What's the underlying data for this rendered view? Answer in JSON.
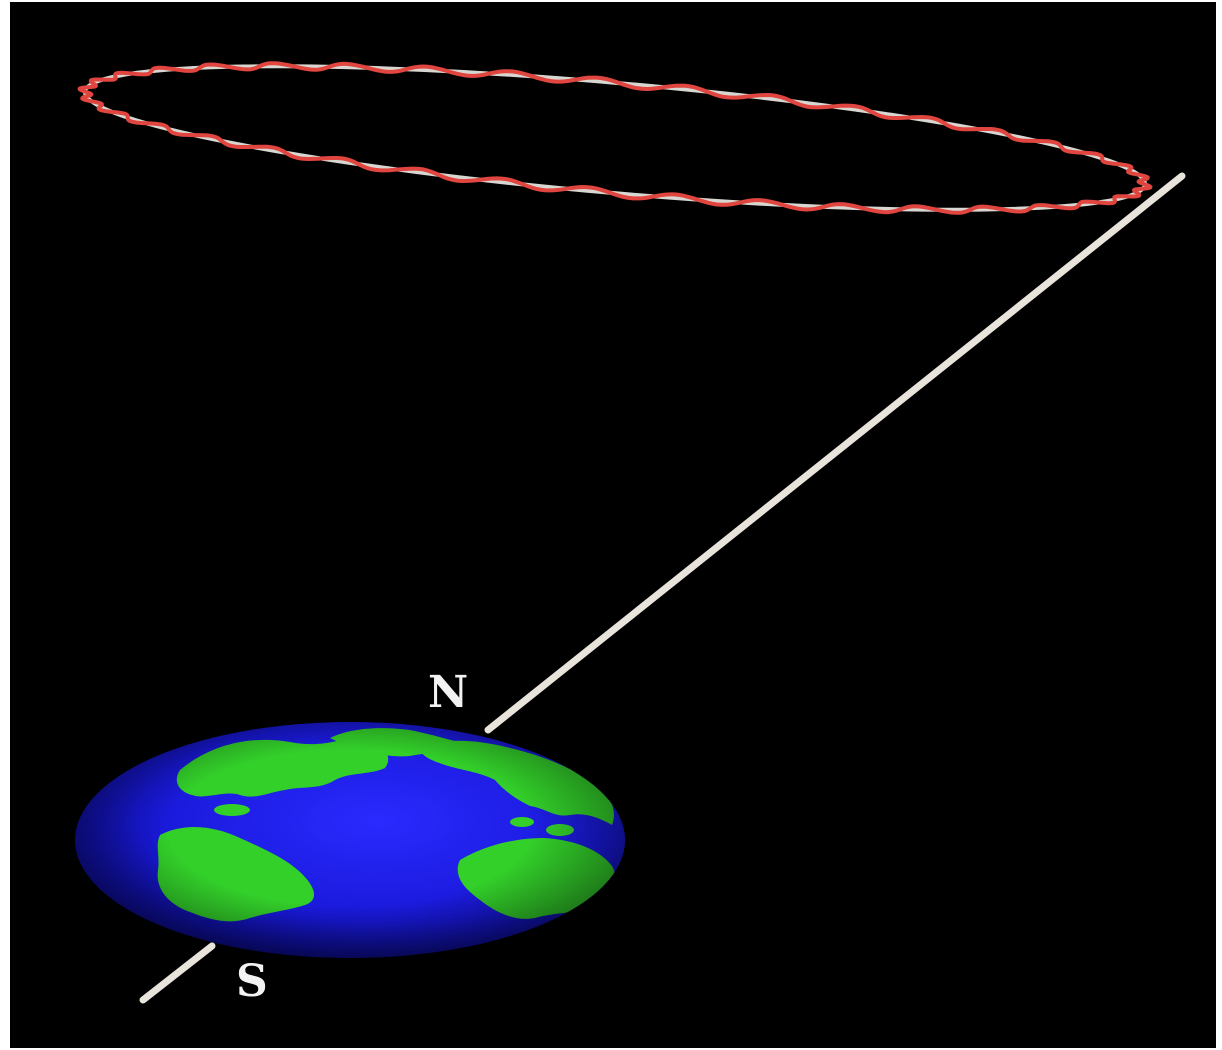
{
  "labels": {
    "north": "N",
    "south": "S"
  },
  "colors": {
    "background": "#000000",
    "frame": "#ffffff",
    "axis": "#e8e4dc",
    "precession_path": "#e0463f",
    "mean_orbit": "#d8d6d0",
    "ocean": "#1f1fe6",
    "land": "#33d02a",
    "label": "#f2f2f2"
  }
}
